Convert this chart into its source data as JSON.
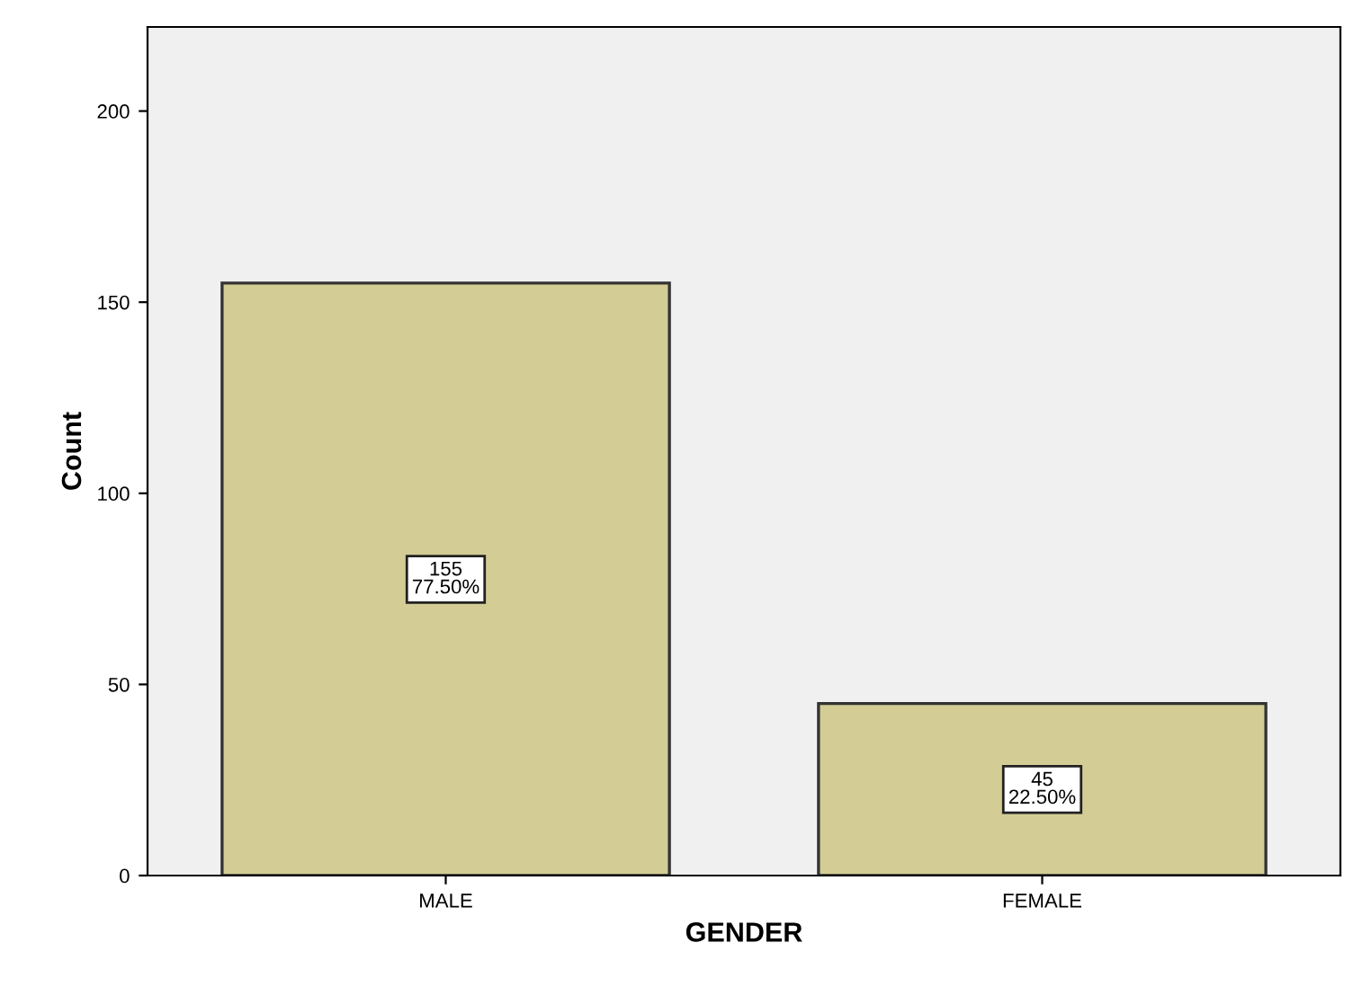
{
  "chart_data": {
    "type": "bar",
    "xlabel": "GENDER",
    "ylabel": "Count",
    "categories": [
      "MALE",
      "FEMALE"
    ],
    "values": [
      155,
      45
    ],
    "value_labels": [
      "155\n77.50%",
      "45\n22.50%"
    ],
    "color": "#d3cd95",
    "ylim": [
      0,
      222
    ],
    "yticks": [
      0,
      50,
      100,
      150,
      200
    ],
    "grid": false
  }
}
